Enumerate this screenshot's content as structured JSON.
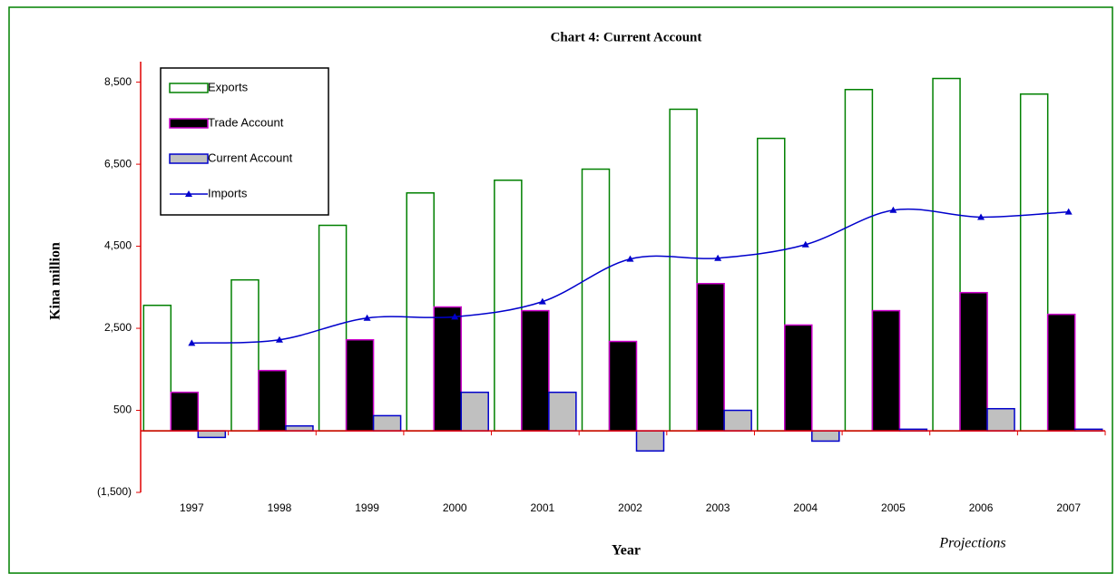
{
  "chart_data": {
    "type": "bar",
    "title": "Chart 4: Current Account",
    "y_label": "Kina million",
    "x_label": "Year",
    "annotation": "Projections",
    "categories": [
      "1997",
      "1998",
      "1999",
      "2000",
      "2001",
      "2002",
      "2003",
      "2004",
      "2005",
      "2006",
      "2007"
    ],
    "series": [
      {
        "name": "Exports",
        "type": "bar",
        "color": "#ffffff",
        "stroke": "#008000",
        "values": [
          3060,
          3680,
          5010,
          5800,
          6110,
          6380,
          7840,
          7130,
          8320,
          8590,
          8210
        ]
      },
      {
        "name": "Trade Account",
        "type": "bar",
        "color": "#000000",
        "stroke": "#cc00cc",
        "values": [
          940,
          1470,
          2220,
          3020,
          2930,
          2180,
          3590,
          2580,
          2930,
          3370,
          2840
        ]
      },
      {
        "name": "Current Account",
        "type": "bar",
        "color": "#c0c0c0",
        "stroke": "#0000cc",
        "values": [
          -160,
          120,
          370,
          940,
          940,
          -490,
          500,
          -250,
          40,
          540,
          40
        ]
      },
      {
        "name": "Imports",
        "type": "line",
        "color": "#0000cc",
        "values": [
          2140,
          2220,
          2750,
          2780,
          3150,
          4190,
          4210,
          4540,
          5380,
          5210,
          5340
        ]
      }
    ],
    "ylim": [
      -1500,
      9000
    ],
    "yticks": [
      {
        "value": -1500,
        "label": "(1,500)"
      },
      500,
      {
        "value": 2500,
        "label": "2,500"
      },
      {
        "value": 4500,
        "label": "4,500"
      },
      {
        "value": 6500,
        "label": "6,500"
      },
      {
        "value": 8500,
        "label": "8,500"
      }
    ],
    "legend": "top-left"
  }
}
